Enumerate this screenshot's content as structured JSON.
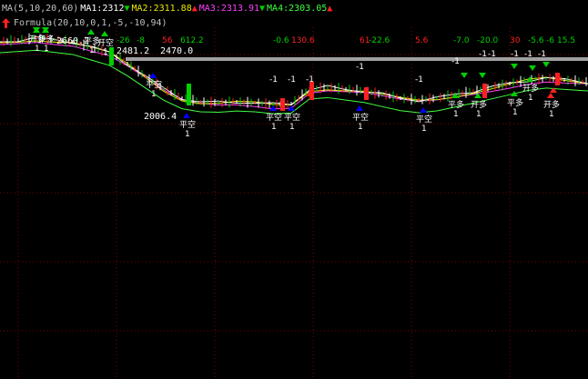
{
  "legend": {
    "ma": "MA(5,10,20,60)",
    "ma1": "MA1:2312",
    "ma2": "MA2:2311.88",
    "ma3": "MA3:2313.91",
    "ma4": "MA4:2303.05",
    "arrow_down": "▼",
    "arrow_up": "▲"
  },
  "formula": "Formula(20,10,0,1,-5,-10,94)",
  "colors": {
    "ma1": "#ffffff",
    "ma2": "#e8e800",
    "ma3": "#ff40ff",
    "ma4": "#40ff40",
    "up": "#ff2020",
    "down": "#00d000",
    "grid": "#800000",
    "blue": "#0000ff",
    "hline": "#a0a0a0"
  },
  "price_labels": {
    "high": "2481.2",
    "level": "2470.0",
    "low": "2006.4",
    "tl": "2660.2"
  },
  "signal_values": [
    {
      "text": "-26",
      "color": "#00d000"
    },
    {
      "text": "-8",
      "color": "#00d000"
    },
    {
      "text": "56",
      "color": "#ff2020"
    },
    {
      "text": "612.2",
      "color": "#00d000"
    },
    {
      "text": "-0.6",
      "color": "#00d000"
    },
    {
      "text": "130.6",
      "color": "#ff2020"
    },
    {
      "text": "61",
      "color": "#ff2020"
    },
    {
      "text": "-22.6",
      "color": "#00d000"
    },
    {
      "text": "5.6",
      "color": "#ff2020"
    },
    {
      "text": "-7.0",
      "color": "#00d000"
    },
    {
      "text": "-20.0",
      "color": "#00d000"
    },
    {
      "text": "30",
      "color": "#ff2020"
    },
    {
      "text": "-5.6",
      "color": "#00d000"
    },
    {
      "text": "-6",
      "color": "#00d000"
    },
    {
      "text": "15.5",
      "color": "#00d000"
    }
  ],
  "tags": {
    "open_long": "开多",
    "close_long": "平多",
    "open_short": "开空",
    "close_short": "平空",
    "one": "1",
    "minus_one": "-1"
  }
}
